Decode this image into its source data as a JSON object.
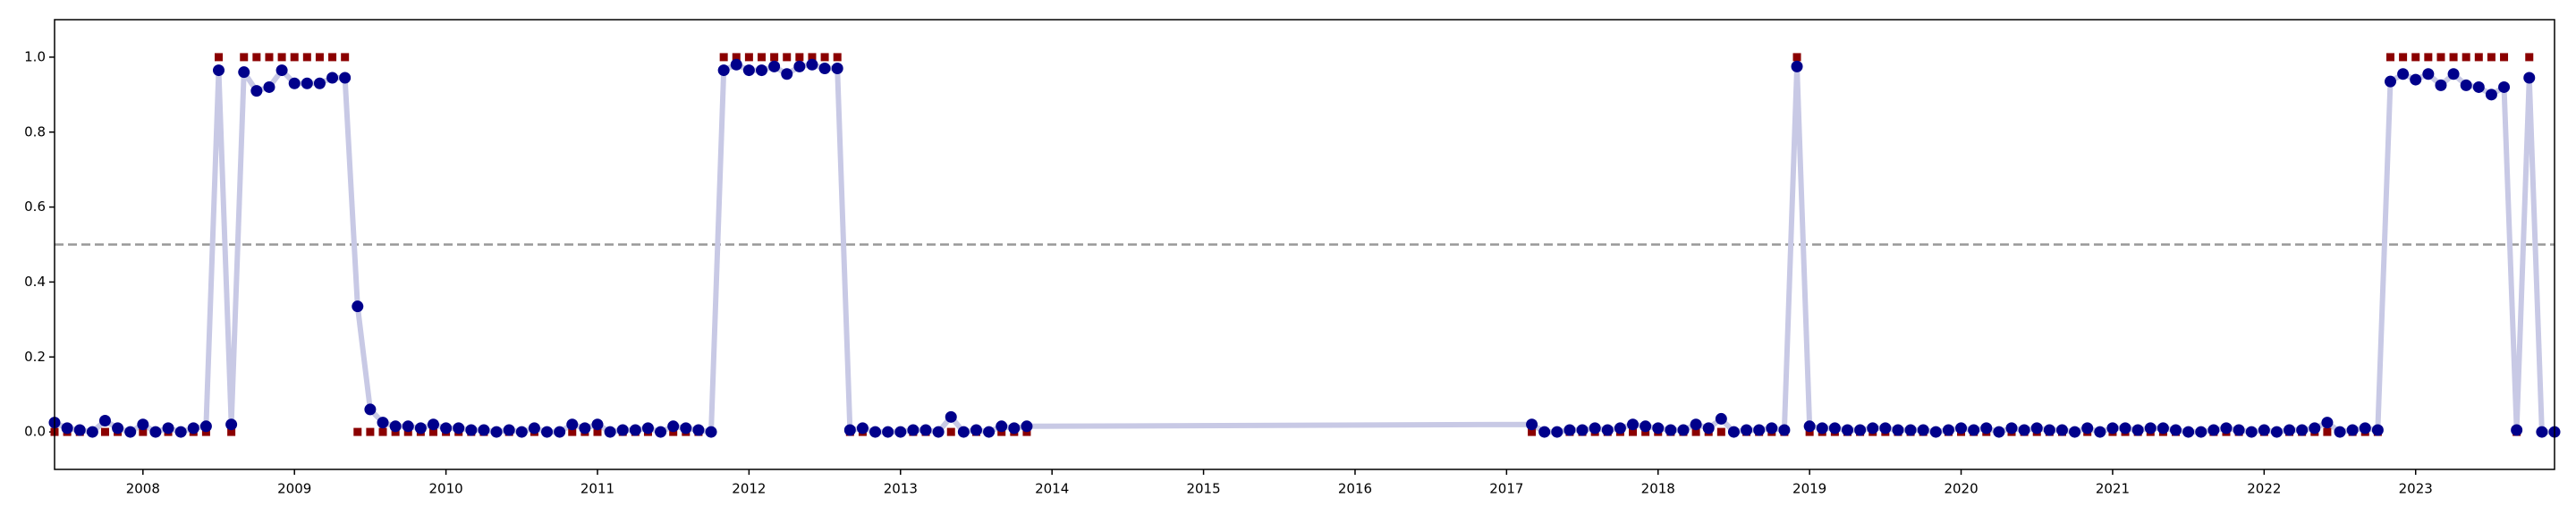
{
  "chart_data": {
    "type": "line",
    "x": [
      "2007-06",
      "2007-07",
      "2007-08",
      "2007-09",
      "2007-10",
      "2007-11",
      "2007-12",
      "2008-01",
      "2008-02",
      "2008-03",
      "2008-04",
      "2008-05",
      "2008-06",
      "2008-07",
      "2008-08",
      "2008-09",
      "2008-10",
      "2008-11",
      "2008-12",
      "2009-01",
      "2009-02",
      "2009-03",
      "2009-04",
      "2009-05",
      "2009-06",
      "2009-07",
      "2009-08",
      "2009-09",
      "2009-10",
      "2009-11",
      "2009-12",
      "2010-01",
      "2010-02",
      "2010-03",
      "2010-04",
      "2010-05",
      "2010-06",
      "2010-07",
      "2010-08",
      "2010-09",
      "2010-10",
      "2010-11",
      "2010-12",
      "2011-01",
      "2011-02",
      "2011-03",
      "2011-04",
      "2011-05",
      "2011-06",
      "2011-07",
      "2011-08",
      "2011-09",
      "2011-10",
      "2011-11",
      "2011-12",
      "2012-01",
      "2012-02",
      "2012-03",
      "2012-04",
      "2012-05",
      "2012-06",
      "2012-07",
      "2012-08",
      "2012-09",
      "2012-10",
      "2012-11",
      "2012-12",
      "2013-01",
      "2013-02",
      "2013-03",
      "2013-04",
      "2013-05",
      "2013-06",
      "2013-07",
      "2013-08",
      "2013-09",
      "2013-10",
      "2013-11",
      "2017-03",
      "2017-04",
      "2017-05",
      "2017-06",
      "2017-07",
      "2017-08",
      "2017-09",
      "2017-10",
      "2017-11",
      "2017-12",
      "2018-01",
      "2018-02",
      "2018-03",
      "2018-04",
      "2018-05",
      "2018-06",
      "2018-07",
      "2018-08",
      "2018-09",
      "2018-10",
      "2018-11",
      "2018-12",
      "2019-01",
      "2019-02",
      "2019-03",
      "2019-04",
      "2019-05",
      "2019-06",
      "2019-07",
      "2019-08",
      "2019-09",
      "2019-10",
      "2019-11",
      "2019-12",
      "2020-01",
      "2020-02",
      "2020-03",
      "2020-04",
      "2020-05",
      "2020-06",
      "2020-07",
      "2020-08",
      "2020-09",
      "2020-10",
      "2020-11",
      "2020-12",
      "2021-01",
      "2021-02",
      "2021-03",
      "2021-04",
      "2021-05",
      "2021-06",
      "2021-07",
      "2021-08",
      "2021-09",
      "2021-10",
      "2021-11",
      "2021-12",
      "2022-01",
      "2022-02",
      "2022-03",
      "2022-04",
      "2022-05",
      "2022-06",
      "2022-07",
      "2022-08",
      "2022-09",
      "2022-10",
      "2022-11",
      "2022-12",
      "2023-01",
      "2023-02",
      "2023-03",
      "2023-04",
      "2023-05",
      "2023-06",
      "2023-07",
      "2023-08",
      "2023-09",
      "2023-10",
      "2023-11",
      "2023-12"
    ],
    "series": [
      {
        "color": "#00008b",
        "line_color": "#c8c9e5",
        "marker": "circle",
        "values": [
          0.025,
          0.01,
          0.005,
          0.0,
          0.03,
          0.01,
          0.0,
          0.02,
          0.0,
          0.01,
          0.0,
          0.01,
          0.015,
          0.965,
          0.02,
          0.96,
          0.91,
          0.92,
          0.965,
          0.93,
          0.93,
          0.93,
          0.945,
          0.945,
          0.335,
          0.06,
          0.025,
          0.015,
          0.015,
          0.01,
          0.02,
          0.01,
          0.01,
          0.005,
          0.005,
          0.0,
          0.005,
          0.0,
          0.01,
          0.0,
          0.0,
          0.02,
          0.01,
          0.02,
          0.0,
          0.005,
          0.005,
          0.01,
          0.0,
          0.015,
          0.01,
          0.005,
          0.0,
          0.965,
          0.98,
          0.965,
          0.965,
          0.975,
          0.955,
          0.975,
          0.98,
          0.97,
          0.97,
          0.005,
          0.01,
          0.0,
          0.0,
          0.0,
          0.005,
          0.005,
          0.0,
          0.04,
          0.0,
          0.005,
          0.0,
          0.015,
          0.01,
          0.015,
          0.02,
          0.0,
          0.0,
          0.005,
          0.005,
          0.01,
          0.005,
          0.01,
          0.02,
          0.015,
          0.01,
          0.005,
          0.005,
          0.02,
          0.01,
          0.035,
          0.0,
          0.005,
          0.005,
          0.01,
          0.005,
          0.975,
          0.015,
          0.01,
          0.01,
          0.005,
          0.005,
          0.01,
          0.01,
          0.005,
          0.005,
          0.005,
          0.0,
          0.005,
          0.01,
          0.005,
          0.01,
          0.0,
          0.01,
          0.005,
          0.01,
          0.005,
          0.005,
          0.0,
          0.01,
          0.0,
          0.01,
          0.01,
          0.005,
          0.01,
          0.01,
          0.005,
          0.0,
          0.0,
          0.005,
          0.01,
          0.005,
          0.0,
          0.005,
          0.0,
          0.005,
          0.005,
          0.01,
          0.025,
          0.0,
          0.005,
          0.01,
          0.005,
          0.935,
          0.955,
          0.94,
          0.955,
          0.925,
          0.955,
          0.925,
          0.92,
          0.9,
          0.92,
          0.005,
          0.945,
          0.0,
          0.0
        ]
      },
      {
        "color": "#8b0000",
        "marker": "square",
        "values": [
          0,
          0,
          0,
          0,
          0,
          0,
          0,
          0,
          0,
          0,
          0,
          0,
          0,
          1,
          0,
          1,
          1,
          1,
          1,
          1,
          1,
          1,
          1,
          1,
          0,
          0,
          0,
          0,
          0,
          0,
          0,
          0,
          0,
          0,
          0,
          0,
          0,
          0,
          0,
          0,
          0,
          0,
          0,
          0,
          0,
          0,
          0,
          0,
          0,
          0,
          0,
          0,
          0,
          1,
          1,
          1,
          1,
          1,
          1,
          1,
          1,
          1,
          1,
          0,
          0,
          0,
          0,
          0,
          0,
          0,
          0,
          0,
          0,
          0,
          0,
          0,
          0,
          0,
          0,
          0,
          0,
          0,
          0,
          0,
          0,
          0,
          0,
          0,
          0,
          0,
          0,
          0,
          0,
          0,
          0,
          0,
          0,
          0,
          0,
          1,
          0,
          0,
          0,
          0,
          0,
          0,
          0,
          0,
          0,
          0,
          0,
          0,
          0,
          0,
          0,
          0,
          0,
          0,
          0,
          0,
          0,
          0,
          0,
          0,
          0,
          0,
          0,
          0,
          0,
          0,
          0,
          0,
          0,
          0,
          0,
          0,
          0,
          0,
          0,
          0,
          0,
          0,
          0,
          0,
          0,
          0,
          1,
          1,
          1,
          1,
          1,
          1,
          1,
          1,
          1,
          1,
          0,
          1,
          0,
          0
        ]
      }
    ],
    "hlines": [
      {
        "value": 0.5,
        "color": "#999999",
        "dash": true
      }
    ],
    "xlim": [
      "2007-06",
      "2023-12"
    ],
    "xticks": [
      2008,
      2009,
      2010,
      2011,
      2012,
      2013,
      2014,
      2015,
      2016,
      2017,
      2018,
      2019,
      2020,
      2021,
      2022,
      2023
    ],
    "ylim": [
      -0.1,
      1.1
    ],
    "yticks": [
      {
        "value": 0,
        "label": "0.0"
      },
      0.2,
      0.4,
      0.6,
      0.8,
      {
        "value": 1,
        "label": "1.0"
      }
    ]
  }
}
